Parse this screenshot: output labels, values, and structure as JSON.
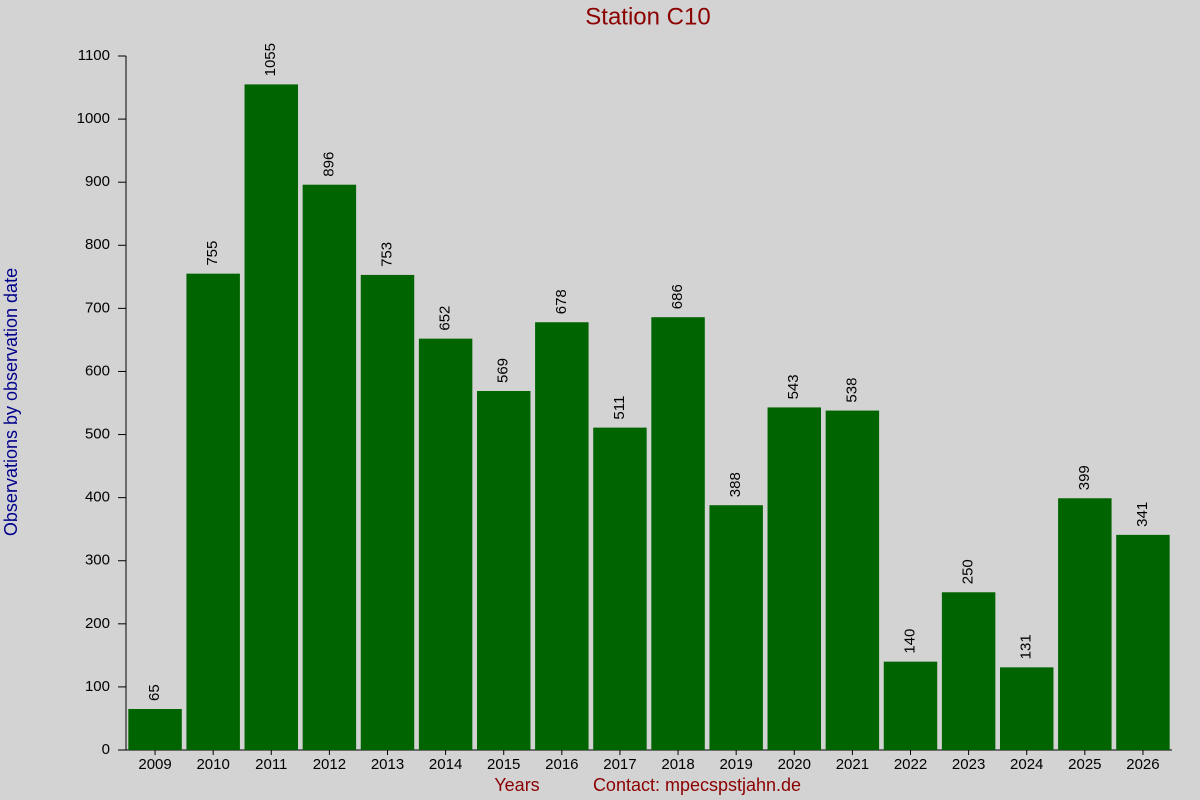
{
  "chart_data": {
    "type": "bar",
    "title": "Station C10",
    "x_label": "Years",
    "contact": "Contact: mpecspstjahn.de",
    "y_label": "Observations by observation date",
    "categories": [
      "2009",
      "2010",
      "2011",
      "2012",
      "2013",
      "2014",
      "2015",
      "2016",
      "2017",
      "2018",
      "2019",
      "2020",
      "2021",
      "2022",
      "2023",
      "2024",
      "2025",
      "2026"
    ],
    "values": [
      65,
      755,
      1055,
      896,
      753,
      652,
      569,
      678,
      511,
      686,
      388,
      543,
      538,
      140,
      250,
      131,
      399,
      341
    ],
    "color": "#006400",
    "ylim": [
      0,
      1100
    ],
    "yticks": [
      0,
      100,
      200,
      300,
      400,
      500,
      600,
      700,
      800,
      900,
      1000,
      1100
    ]
  }
}
